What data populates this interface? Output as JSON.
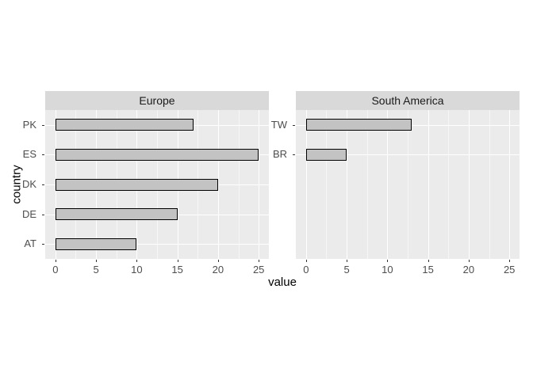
{
  "figure": {
    "background": "#ffffff"
  },
  "chart_data": {
    "type": "bar",
    "orientation": "horizontal",
    "xlabel": "value",
    "ylabel": "country",
    "xlim": [
      -1.25,
      26.25
    ],
    "x_major_ticks": [
      0,
      5,
      10,
      15,
      20,
      25
    ],
    "x_minor_ticks": [
      2.5,
      7.5,
      12.5,
      17.5,
      22.5
    ],
    "grid": "on",
    "legend": "none",
    "facets": [
      {
        "label": "Europe",
        "categories": [
          "PK",
          "ES",
          "DK",
          "DE",
          "AT"
        ],
        "values": [
          17,
          25,
          20,
          15,
          10
        ]
      },
      {
        "label": "South America",
        "categories": [
          "TW",
          "BR"
        ],
        "values": [
          13,
          5
        ]
      }
    ],
    "colors": {
      "panel_bg": "#ebebeb",
      "strip_bg": "#d9d9d9",
      "strip_text": "#1a1a1a",
      "bar_fill": "#c3c3c3",
      "bar_border": "#000000",
      "gridline": "#ffffff",
      "tick_mark": "#333333",
      "tick_text": "#4d4d4d",
      "axis_title_text": "#000000"
    }
  }
}
